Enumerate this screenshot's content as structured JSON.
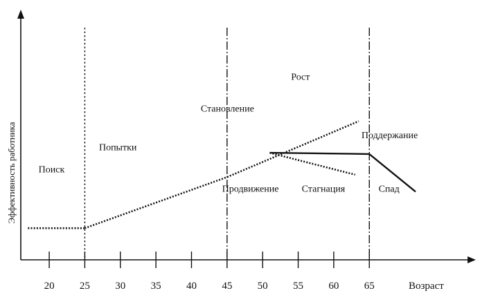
{
  "chart_data": {
    "type": "line",
    "title": "",
    "xlabel": "Возраст",
    "ylabel": "Эффективность работника",
    "x_ticks": [
      20,
      25,
      30,
      35,
      40,
      45,
      50,
      55,
      60,
      65
    ],
    "xlim": [
      16,
      79
    ],
    "ylim": [
      0,
      10
    ],
    "grid": false,
    "stage_dividers": [
      {
        "x": 25,
        "style": "dotted"
      },
      {
        "x": 45,
        "style": "dash-dot"
      },
      {
        "x": 65,
        "style": "dash-dot"
      }
    ],
    "series": [
      {
        "key": "search",
        "style": "dotted",
        "x": [
          17,
          25
        ],
        "y": [
          1.3,
          1.3
        ]
      },
      {
        "key": "rise",
        "style": "dotted",
        "x": [
          25,
          45,
          63.5
        ],
        "y": [
          1.3,
          3.4,
          5.7
        ]
      },
      {
        "key": "maintenance",
        "style": "solid",
        "x": [
          51,
          65
        ],
        "y": [
          4.4,
          4.35
        ]
      },
      {
        "key": "stagnation",
        "style": "dotted",
        "x": [
          51,
          63
        ],
        "y": [
          4.4,
          3.5
        ]
      },
      {
        "key": "decline",
        "style": "solid",
        "x": [
          65,
          71.5
        ],
        "y": [
          4.35,
          2.8
        ]
      }
    ],
    "region_labels": [
      {
        "key": "poisk",
        "text": "Поиск",
        "x": 18.5,
        "y": 3.6
      },
      {
        "key": "popytki",
        "text": "Попытки",
        "x": 27,
        "y": 4.5
      },
      {
        "key": "stanovlenie",
        "text": "Становление",
        "x": 41.3,
        "y": 6.1
      },
      {
        "key": "rost",
        "text": "Рост",
        "x": 54,
        "y": 7.4
      },
      {
        "key": "podderzhanie",
        "text": "Поддержание",
        "x": 63.9,
        "y": 5.0
      },
      {
        "key": "prodvizhenie",
        "text": "Продвижение",
        "x": 44.3,
        "y": 2.8
      },
      {
        "key": "stagnatsiya",
        "text": "Стагнация",
        "x": 55.5,
        "y": 2.8
      },
      {
        "key": "spad",
        "text": "Спад",
        "x": 66.3,
        "y": 2.8
      }
    ]
  }
}
